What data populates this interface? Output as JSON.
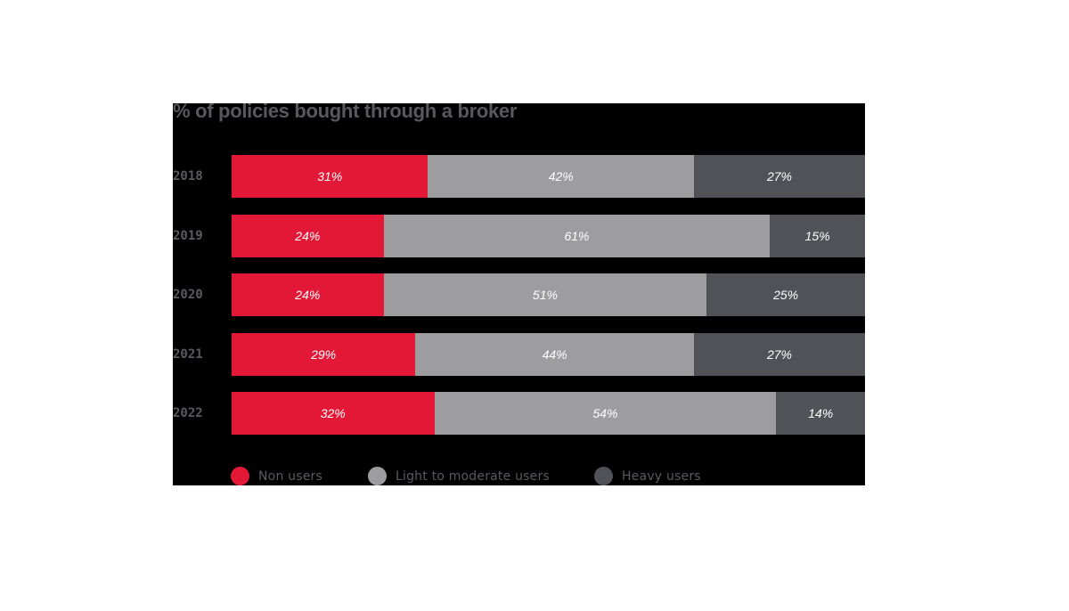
{
  "chart": {
    "title": "% of policies bought through a broker",
    "rows": [
      {
        "year": "2018",
        "segments": [
          {
            "value": 31,
            "label": "31%"
          },
          {
            "value": 42,
            "label": "42%"
          },
          {
            "value": 27,
            "label": "27%"
          }
        ]
      },
      {
        "year": "2019",
        "segments": [
          {
            "value": 24,
            "label": "24%"
          },
          {
            "value": 61,
            "label": "61%"
          },
          {
            "value": 15,
            "label": "15%"
          }
        ]
      },
      {
        "year": "2020",
        "segments": [
          {
            "value": 24,
            "label": "24%"
          },
          {
            "value": 51,
            "label": "51%"
          },
          {
            "value": 25,
            "label": "25%"
          }
        ]
      },
      {
        "year": "2021",
        "segments": [
          {
            "value": 29,
            "label": "29%"
          },
          {
            "value": 44,
            "label": "44%"
          },
          {
            "value": 27,
            "label": "27%"
          }
        ]
      },
      {
        "year": "2022",
        "segments": [
          {
            "value": 32,
            "label": "32%"
          },
          {
            "value": 54,
            "label": "54%"
          },
          {
            "value": 14,
            "label": "14%"
          }
        ]
      }
    ],
    "legend": [
      {
        "label": "Non users",
        "color": "#e31837"
      },
      {
        "label": "Light to moderate users",
        "color": "#9d9c9f"
      },
      {
        "label": "Heavy users",
        "color": "#515257"
      }
    ]
  },
  "chart_data": {
    "type": "bar",
    "orientation": "horizontal",
    "stacked": true,
    "title": "% of policies bought through a broker",
    "categories": [
      "2018",
      "2019",
      "2020",
      "2021",
      "2022"
    ],
    "series": [
      {
        "name": "Non users",
        "color": "#e31837",
        "values": [
          31,
          24,
          24,
          29,
          32
        ]
      },
      {
        "name": "Light to moderate users",
        "color": "#9d9c9f",
        "values": [
          42,
          61,
          51,
          44,
          54
        ]
      },
      {
        "name": "Heavy users",
        "color": "#515257",
        "values": [
          27,
          15,
          25,
          27,
          14
        ]
      }
    ],
    "xlabel": "",
    "ylabel": "",
    "xlim": [
      0,
      100
    ],
    "grid": false,
    "legend_position": "bottom",
    "data_labels": true
  }
}
